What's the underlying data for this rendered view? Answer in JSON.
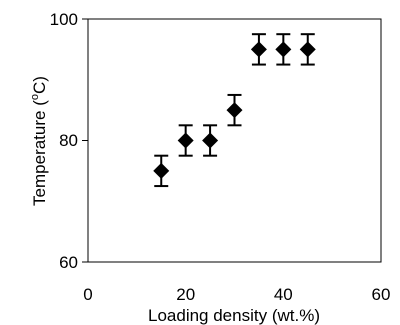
{
  "chart_data": {
    "type": "scatter",
    "title": "",
    "xlabel": "Loading density (wt.%)",
    "ylabel_main": "Temperature (",
    "ylabel_sup": "o",
    "ylabel_tail": "C)",
    "xlim": [
      0,
      60
    ],
    "ylim": [
      60,
      100
    ],
    "xticks": [
      "0",
      "20",
      "40",
      "60"
    ],
    "yticks": [
      "60",
      "80",
      "100"
    ],
    "grid": false,
    "legend": "none",
    "marker": "diamond",
    "marker_color": "#000000",
    "series": [
      {
        "x": [
          15,
          20,
          25,
          30,
          35,
          40,
          45
        ],
        "y": [
          75,
          80,
          80,
          85,
          95,
          95,
          95
        ],
        "error": [
          2.5,
          2.5,
          2.5,
          2.5,
          2.5,
          2.5,
          2.5
        ]
      }
    ]
  }
}
